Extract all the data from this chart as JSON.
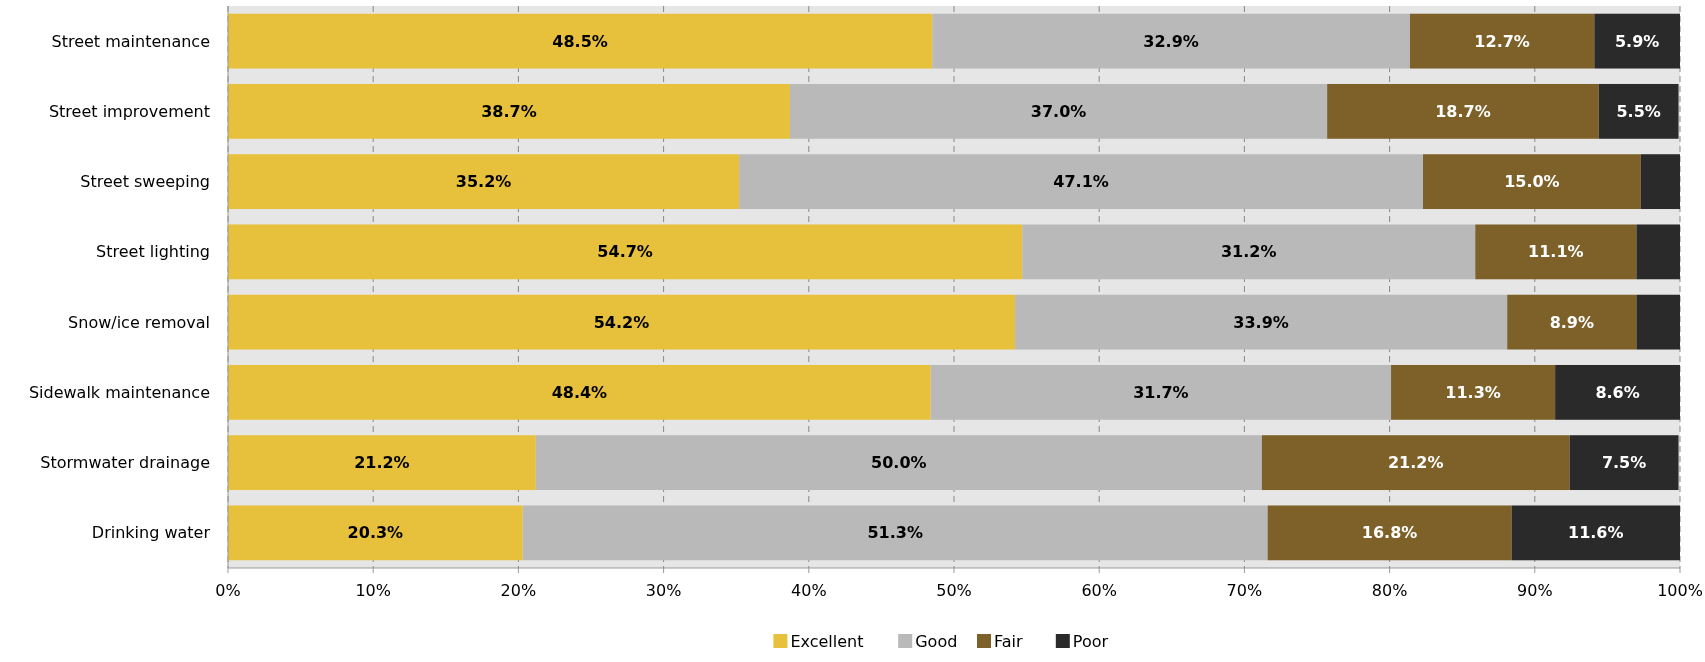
{
  "chart_data": {
    "type": "bar",
    "orientation": "horizontal",
    "stacked": true,
    "categories": [
      "Street maintenance",
      "Street improvement",
      "Street sweeping",
      "Street lighting",
      "Snow/ice removal",
      "Sidewalk maintenance",
      "Stormwater drainage",
      "Drinking water"
    ],
    "series": [
      {
        "name": "Excellent",
        "color": "#e8c13c",
        "values": [
          48.5,
          38.7,
          35.2,
          54.7,
          54.2,
          48.4,
          21.2,
          20.3
        ],
        "value_labels": [
          "48.5%",
          "38.7%",
          "35.2%",
          "54.7%",
          "54.2%",
          "48.4%",
          "21.2%",
          "20.3%"
        ]
      },
      {
        "name": "Good",
        "color": "#b9b9b9",
        "values": [
          32.9,
          37.0,
          47.1,
          31.2,
          33.9,
          31.7,
          50.0,
          51.3
        ],
        "value_labels": [
          "32.9%",
          "37.0%",
          "47.1%",
          "31.2%",
          "33.9%",
          "31.7%",
          "50.0%",
          "51.3%"
        ]
      },
      {
        "name": "Fair",
        "color": "#7d6128",
        "values": [
          12.7,
          18.7,
          15.0,
          11.1,
          8.9,
          11.3,
          21.2,
          16.8
        ],
        "value_labels": [
          "12.7%",
          "18.7%",
          "15.0%",
          "11.1%",
          "8.9%",
          "11.3%",
          "21.2%",
          "16.8%"
        ]
      },
      {
        "name": "Poor",
        "color": "#2a2a2a",
        "values": [
          5.9,
          5.5,
          2.7,
          3.0,
          3.0,
          8.6,
          7.5,
          11.6
        ],
        "value_labels": [
          "5.9%",
          "5.5%",
          null,
          null,
          null,
          "8.6%",
          "7.5%",
          "11.6%"
        ]
      }
    ],
    "xlim": [
      0,
      100
    ],
    "xticks": [
      {
        "value": 0,
        "label": "0%"
      },
      {
        "value": 10,
        "label": "10%"
      },
      {
        "value": 20,
        "label": "20%"
      },
      {
        "value": 30,
        "label": "30%"
      },
      {
        "value": 40,
        "label": "40%"
      },
      {
        "value": 50,
        "label": "50%"
      },
      {
        "value": 60,
        "label": "60%"
      },
      {
        "value": 70,
        "label": "70%"
      },
      {
        "value": 80,
        "label": "80%"
      },
      {
        "value": 90,
        "label": "90%"
      },
      {
        "value": 100,
        "label": "100%"
      }
    ],
    "grid": "x",
    "legend": "bottom"
  }
}
